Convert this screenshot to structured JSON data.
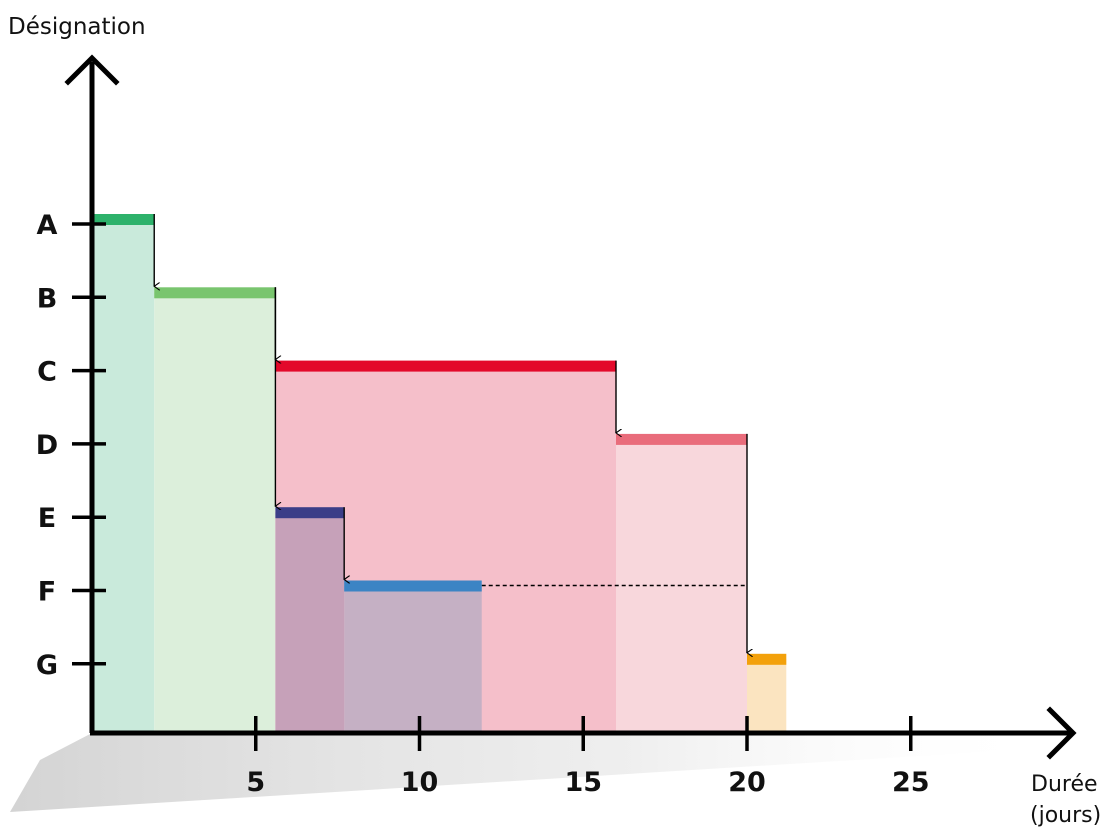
{
  "chart_data": {
    "type": "gantt",
    "ylabel": "Désignation",
    "xlabel_line1": "Durée",
    "xlabel_line2": "(jours)",
    "x_ticks": [
      5,
      10,
      15,
      20,
      25
    ],
    "x_tick_labels": [
      "5",
      "10",
      "15",
      "20",
      "25"
    ],
    "xlim": [
      0,
      30
    ],
    "categories": [
      "A",
      "B",
      "C",
      "D",
      "E",
      "F",
      "G"
    ],
    "tasks": [
      {
        "task": "A",
        "start": 0,
        "end": 1.9,
        "color": "#2db26b",
        "fill": "#c9eadb"
      },
      {
        "task": "B",
        "start": 1.9,
        "end": 5.6,
        "color": "#79c56e",
        "fill": "#dcefdb"
      },
      {
        "task": "C",
        "start": 5.6,
        "end": 16.0,
        "color": "#e3092a",
        "fill": "#f5bfca"
      },
      {
        "task": "D",
        "start": 16.0,
        "end": 20.0,
        "color": "#e96c7b",
        "fill": "#f8d7dc"
      },
      {
        "task": "E",
        "start": 5.6,
        "end": 7.7,
        "color": "#3b3e88",
        "fill": "#c6a1b9"
      },
      {
        "task": "F",
        "start": 7.7,
        "end": 11.9,
        "color": "#3c84c4",
        "fill": "#c5b0c4"
      },
      {
        "task": "G",
        "start": 20.0,
        "end": 21.2,
        "color": "#f3a10b",
        "fill": "#fbe4c0"
      }
    ],
    "dependencies": [
      {
        "from": "A",
        "to": "B"
      },
      {
        "from": "B",
        "to": "C"
      },
      {
        "from": "B",
        "to": "E"
      },
      {
        "from": "C",
        "to": "D"
      },
      {
        "from": "E",
        "to": "F"
      },
      {
        "from": "D",
        "to": "G"
      }
    ],
    "slack": [
      {
        "task": "F",
        "from": 11.9,
        "to": 20.0
      }
    ],
    "colors": {
      "axis": "#000000",
      "shadow": "#d9d9d9"
    }
  }
}
